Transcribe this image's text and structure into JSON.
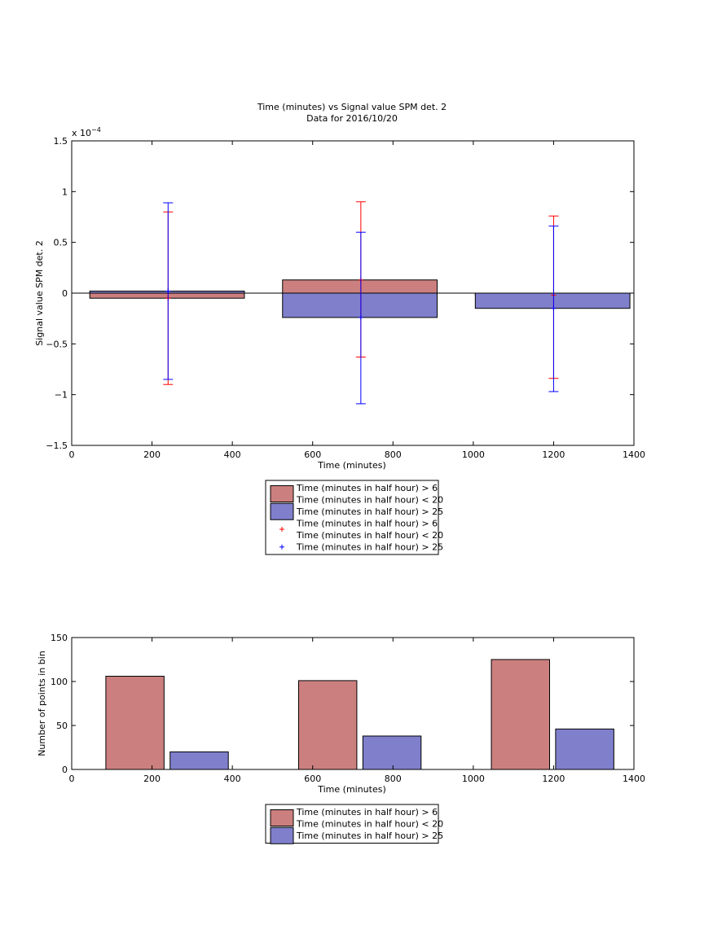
{
  "colors": {
    "red_fill": "#cc7f7f",
    "blue_fill": "#7f7fcc",
    "red_err": "#ff0000",
    "blue_err": "#0000ff"
  },
  "chart_data": [
    {
      "type": "bar",
      "title": "Time (minutes) vs Signal value SPM det. 2",
      "subtitle": "Data for 2016/10/20",
      "xlabel": "Time (minutes)",
      "ylabel": "Signal value SPM det. 2",
      "y_exponent": "x 10",
      "y_exponent_power": "−4",
      "xlim": [
        0,
        1400
      ],
      "ylim": [
        -1.5,
        1.5
      ],
      "y_scale_factor": 0.0001,
      "x_ticks": [
        0,
        200,
        400,
        600,
        800,
        1000,
        1200,
        1400
      ],
      "y_ticks": [
        -1.5,
        -1,
        -0.5,
        0,
        0.5,
        1,
        1.5
      ],
      "y_tick_labels": [
        "−1.5",
        "−1",
        "−0.5",
        "0",
        "0.5",
        "1",
        "1.5"
      ],
      "bar_edges": [
        [
          45,
          430
        ],
        [
          525,
          910
        ],
        [
          1005,
          1390
        ]
      ],
      "series": [
        {
          "name": "Time (minutes in half hour) > 6\nTime (minutes in half hour) < 20",
          "values": [
            -0.05,
            0.13,
            -0.02
          ],
          "err_center": [
            -0.05,
            0.13,
            -0.02
          ],
          "err_low": [
            -0.9,
            -0.63,
            -0.84
          ],
          "err_high": [
            0.8,
            0.9,
            0.76
          ]
        },
        {
          "name": "Time (minutes in half hour) > 25",
          "values": [
            0.02,
            -0.24,
            -0.15
          ],
          "err_center": [
            0.02,
            -0.24,
            -0.15
          ],
          "err_low": [
            -0.85,
            -1.09,
            -0.97
          ],
          "err_high": [
            0.89,
            0.6,
            0.66
          ]
        }
      ],
      "err_x": [
        240,
        720,
        1200
      ],
      "legend": {
        "placement": "below",
        "entries": [
          {
            "kind": "bar",
            "series": 0,
            "lines": [
              "Time (minutes in half hour) > 6",
              "Time (minutes in half hour) < 20"
            ]
          },
          {
            "kind": "bar",
            "series": 1,
            "lines": [
              "Time (minutes in half hour) > 25"
            ]
          },
          {
            "kind": "marker",
            "series": 0,
            "lines": [
              "Time (minutes in half hour) > 6",
              "Time (minutes in half hour) < 20"
            ]
          },
          {
            "kind": "marker",
            "series": 1,
            "lines": [
              "Time (minutes in half hour) > 25"
            ]
          }
        ]
      }
    },
    {
      "type": "bar",
      "xlabel": "Time (minutes)",
      "ylabel": "Number of points in bin",
      "xlim": [
        0,
        1400
      ],
      "ylim": [
        0,
        150
      ],
      "x_ticks": [
        0,
        200,
        400,
        600,
        800,
        1000,
        1200,
        1400
      ],
      "y_ticks": [
        0,
        50,
        100,
        150
      ],
      "bars": [
        {
          "series": 0,
          "x0": 85,
          "x1": 230,
          "value": 106
        },
        {
          "series": 1,
          "x0": 245,
          "x1": 390,
          "value": 20
        },
        {
          "series": 0,
          "x0": 565,
          "x1": 710,
          "value": 101
        },
        {
          "series": 1,
          "x0": 725,
          "x1": 870,
          "value": 38
        },
        {
          "series": 0,
          "x0": 1045,
          "x1": 1190,
          "value": 125
        },
        {
          "series": 1,
          "x0": 1205,
          "x1": 1350,
          "value": 46
        }
      ],
      "series": [
        {
          "name": "Time (minutes in half hour) > 6\nTime (minutes in half hour) < 20"
        },
        {
          "name": "Time (minutes in half hour) > 25"
        }
      ],
      "legend": {
        "placement": "below",
        "entries": [
          {
            "kind": "bar",
            "series": 0,
            "lines": [
              "Time (minutes in half hour) > 6",
              "Time (minutes in half hour) < 20"
            ]
          },
          {
            "kind": "bar",
            "series": 1,
            "lines": [
              "Time (minutes in half hour) > 25"
            ]
          }
        ]
      }
    }
  ]
}
